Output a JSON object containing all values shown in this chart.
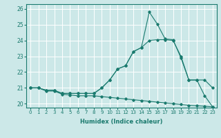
{
  "xlabel": "Humidex (Indice chaleur)",
  "bg_color": "#cce8e8",
  "line_color": "#1a7a6e",
  "grid_color": "#ffffff",
  "xlim": [
    -0.5,
    23.5
  ],
  "ylim": [
    19.75,
    26.3
  ],
  "yticks": [
    20,
    21,
    22,
    23,
    24,
    25,
    26
  ],
  "xticks": [
    0,
    1,
    2,
    3,
    4,
    5,
    6,
    7,
    8,
    9,
    10,
    11,
    12,
    13,
    14,
    15,
    16,
    17,
    18,
    19,
    20,
    21,
    22,
    23
  ],
  "series1_x": [
    0,
    1,
    2,
    3,
    4,
    5,
    6,
    7,
    8,
    9,
    10,
    11,
    12,
    13,
    14,
    15,
    16,
    17,
    18,
    19,
    20,
    21,
    22,
    23
  ],
  "series1_y": [
    21.0,
    21.0,
    20.8,
    20.8,
    20.6,
    20.55,
    20.5,
    20.5,
    20.5,
    20.45,
    20.4,
    20.35,
    20.3,
    20.25,
    20.2,
    20.15,
    20.1,
    20.05,
    20.0,
    19.95,
    19.9,
    19.87,
    19.84,
    19.8
  ],
  "series2_x": [
    0,
    1,
    2,
    3,
    4,
    5,
    6,
    7,
    8,
    9,
    10,
    11,
    12,
    13,
    14,
    15,
    16,
    17,
    18,
    19,
    20,
    21,
    22,
    23
  ],
  "series2_y": [
    21.0,
    21.0,
    20.85,
    20.85,
    20.65,
    20.65,
    20.65,
    20.65,
    20.65,
    21.0,
    21.5,
    22.2,
    22.4,
    23.3,
    23.55,
    24.0,
    24.05,
    24.05,
    24.0,
    23.0,
    21.5,
    21.5,
    21.5,
    21.0
  ],
  "series3_x": [
    0,
    1,
    2,
    3,
    4,
    5,
    6,
    7,
    8,
    9,
    10,
    11,
    12,
    13,
    14,
    15,
    16,
    17,
    18,
    19,
    20,
    21,
    22,
    23
  ],
  "series3_y": [
    21.0,
    21.0,
    20.85,
    20.85,
    20.65,
    20.65,
    20.65,
    20.65,
    20.65,
    21.0,
    21.5,
    22.2,
    22.4,
    23.3,
    23.55,
    25.8,
    25.05,
    24.1,
    24.05,
    22.9,
    21.5,
    21.5,
    20.5,
    19.8
  ]
}
